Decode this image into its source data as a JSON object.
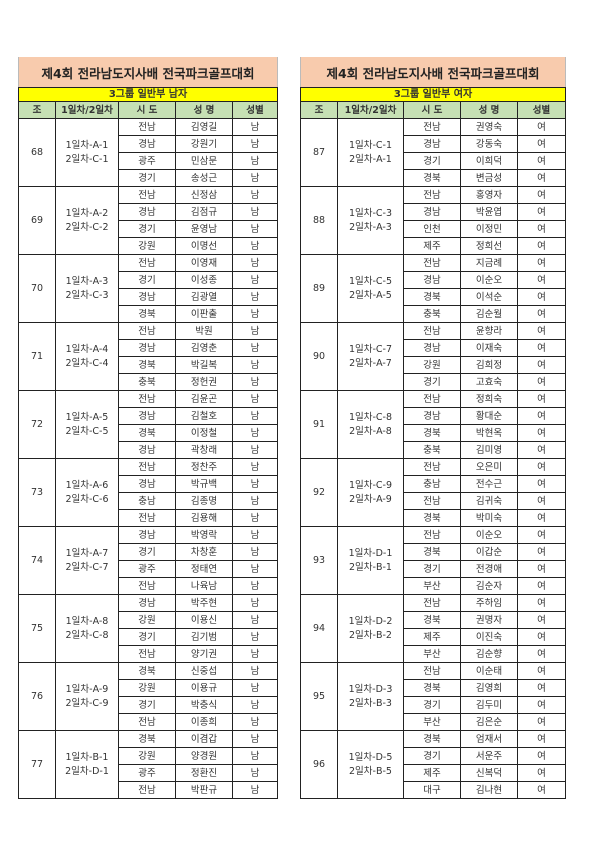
{
  "tables": [
    {
      "title": "제4회 전라남도지사배 전국파크골프대회",
      "subtitle": "3그룹 일반부 남자",
      "headers": [
        "조",
        "1일차/2일차",
        "시  도",
        "성 명",
        "성별"
      ],
      "groups": [
        {
          "id": "68",
          "day1": "1일차-A-1",
          "day2": "2일차-C-1",
          "players": [
            [
              "전남",
              "김영길",
              "남"
            ],
            [
              "경남",
              "강원기",
              "남"
            ],
            [
              "광주",
              "민삼문",
              "남"
            ],
            [
              "경기",
              "송성근",
              "남"
            ]
          ]
        },
        {
          "id": "69",
          "day1": "1일차-A-2",
          "day2": "2일차-C-2",
          "players": [
            [
              "전남",
              "신정삼",
              "남"
            ],
            [
              "경남",
              "김점규",
              "남"
            ],
            [
              "경기",
              "윤영남",
              "남"
            ],
            [
              "강원",
              "이명선",
              "남"
            ]
          ]
        },
        {
          "id": "70",
          "day1": "1일차-A-3",
          "day2": "2일차-C-3",
          "players": [
            [
              "전남",
              "이영재",
              "남"
            ],
            [
              "경기",
              "이성종",
              "남"
            ],
            [
              "경남",
              "김광열",
              "남"
            ],
            [
              "경북",
              "이판출",
              "남"
            ]
          ]
        },
        {
          "id": "71",
          "day1": "1일차-A-4",
          "day2": "2일차-C-4",
          "players": [
            [
              "전남",
              "박원",
              "남"
            ],
            [
              "경남",
              "김영춘",
              "남"
            ],
            [
              "경북",
              "박길복",
              "남"
            ],
            [
              "충북",
              "정헌권",
              "남"
            ]
          ]
        },
        {
          "id": "72",
          "day1": "1일차-A-5",
          "day2": "2일차-C-5",
          "players": [
            [
              "전남",
              "김윤곤",
              "남"
            ],
            [
              "경남",
              "김철호",
              "남"
            ],
            [
              "경북",
              "이정철",
              "남"
            ],
            [
              "경남",
              "곽창래",
              "남"
            ]
          ]
        },
        {
          "id": "73",
          "day1": "1일차-A-6",
          "day2": "2일차-C-6",
          "players": [
            [
              "전남",
              "정찬주",
              "남"
            ],
            [
              "경남",
              "박규백",
              "남"
            ],
            [
              "충남",
              "김종명",
              "남"
            ],
            [
              "전남",
              "김용해",
              "남"
            ]
          ]
        },
        {
          "id": "74",
          "day1": "1일차-A-7",
          "day2": "2일차-C-7",
          "players": [
            [
              "경남",
              "박영락",
              "남"
            ],
            [
              "경기",
              "차창훈",
              "남"
            ],
            [
              "광주",
              "정태연",
              "남"
            ],
            [
              "전남",
              "나육남",
              "남"
            ]
          ]
        },
        {
          "id": "75",
          "day1": "1일차-A-8",
          "day2": "2일차-C-8",
          "players": [
            [
              "경남",
              "박주현",
              "남"
            ],
            [
              "강원",
              "이용신",
              "남"
            ],
            [
              "경기",
              "김기범",
              "남"
            ],
            [
              "전남",
              "양기권",
              "남"
            ]
          ]
        },
        {
          "id": "76",
          "day1": "1일차-A-9",
          "day2": "2일차-C-9",
          "players": [
            [
              "경북",
              "신중섭",
              "남"
            ],
            [
              "강원",
              "이용규",
              "남"
            ],
            [
              "경기",
              "박충식",
              "남"
            ],
            [
              "전남",
              "이종희",
              "남"
            ]
          ]
        },
        {
          "id": "77",
          "day1": "1일차-B-1",
          "day2": "2일차-D-1",
          "players": [
            [
              "경북",
              "이겸갑",
              "남"
            ],
            [
              "강원",
              "양경원",
              "남"
            ],
            [
              "광주",
              "정환진",
              "남"
            ],
            [
              "전남",
              "박판규",
              "남"
            ]
          ]
        }
      ]
    },
    {
      "title": "제4회 전라남도지사배 전국파크골프대회",
      "subtitle": "3그룹 일반부 여자",
      "headers": [
        "조",
        "1일차/2일차",
        "시  도",
        "성 명",
        "성별"
      ],
      "groups": [
        {
          "id": "87",
          "day1": "1일차-C-1",
          "day2": "2일차-A-1",
          "players": [
            [
              "전남",
              "권영숙",
              "여"
            ],
            [
              "경남",
              "강동숙",
              "여"
            ],
            [
              "경기",
              "이희덕",
              "여"
            ],
            [
              "경북",
              "변금성",
              "여"
            ]
          ]
        },
        {
          "id": "88",
          "day1": "1일차-C-3",
          "day2": "2일차-A-3",
          "players": [
            [
              "전남",
              "홍영자",
              "여"
            ],
            [
              "경남",
              "박윤엽",
              "여"
            ],
            [
              "인천",
              "이정민",
              "여"
            ],
            [
              "제주",
              "정희선",
              "여"
            ]
          ]
        },
        {
          "id": "89",
          "day1": "1일차-C-5",
          "day2": "2일차-A-5",
          "players": [
            [
              "전남",
              "지금례",
              "여"
            ],
            [
              "경남",
              "이순오",
              "여"
            ],
            [
              "경북",
              "이석순",
              "여"
            ],
            [
              "충북",
              "김순월",
              "여"
            ]
          ]
        },
        {
          "id": "90",
          "day1": "1일차-C-7",
          "day2": "2일차-A-7",
          "players": [
            [
              "전남",
              "윤향라",
              "여"
            ],
            [
              "경남",
              "이재숙",
              "여"
            ],
            [
              "강원",
              "김희정",
              "여"
            ],
            [
              "경기",
              "고효숙",
              "여"
            ]
          ]
        },
        {
          "id": "91",
          "day1": "1일차-C-8",
          "day2": "2일차-A-8",
          "players": [
            [
              "전남",
              "정희숙",
              "여"
            ],
            [
              "경남",
              "황대순",
              "여"
            ],
            [
              "경북",
              "박현옥",
              "여"
            ],
            [
              "충북",
              "김미영",
              "여"
            ]
          ]
        },
        {
          "id": "92",
          "day1": "1일차-C-9",
          "day2": "2일차-A-9",
          "players": [
            [
              "전남",
              "오은미",
              "여"
            ],
            [
              "충남",
              "전수근",
              "여"
            ],
            [
              "전남",
              "김귀숙",
              "여"
            ],
            [
              "경북",
              "박미숙",
              "여"
            ]
          ]
        },
        {
          "id": "93",
          "day1": "1일차-D-1",
          "day2": "2일차-B-1",
          "players": [
            [
              "전남",
              "이순오",
              "여"
            ],
            [
              "경북",
              "이갑순",
              "여"
            ],
            [
              "경기",
              "전경애",
              "여"
            ],
            [
              "부산",
              "김순자",
              "여"
            ]
          ]
        },
        {
          "id": "94",
          "day1": "1일차-D-2",
          "day2": "2일차-B-2",
          "players": [
            [
              "전남",
              "주하임",
              "여"
            ],
            [
              "경북",
              "권명자",
              "여"
            ],
            [
              "제주",
              "이진숙",
              "여"
            ],
            [
              "부산",
              "김순향",
              "여"
            ]
          ]
        },
        {
          "id": "95",
          "day1": "1일차-D-3",
          "day2": "2일차-B-3",
          "players": [
            [
              "전남",
              "이순태",
              "여"
            ],
            [
              "경북",
              "김영희",
              "여"
            ],
            [
              "경기",
              "김두미",
              "여"
            ],
            [
              "부산",
              "김은순",
              "여"
            ]
          ]
        },
        {
          "id": "96",
          "day1": "1일차-D-5",
          "day2": "2일차-B-5",
          "players": [
            [
              "경북",
              "엄재서",
              "여"
            ],
            [
              "경기",
              "서운주",
              "여"
            ],
            [
              "제주",
              "신복덕",
              "여"
            ],
            [
              "대구",
              "김나현",
              "여"
            ]
          ]
        }
      ]
    }
  ]
}
